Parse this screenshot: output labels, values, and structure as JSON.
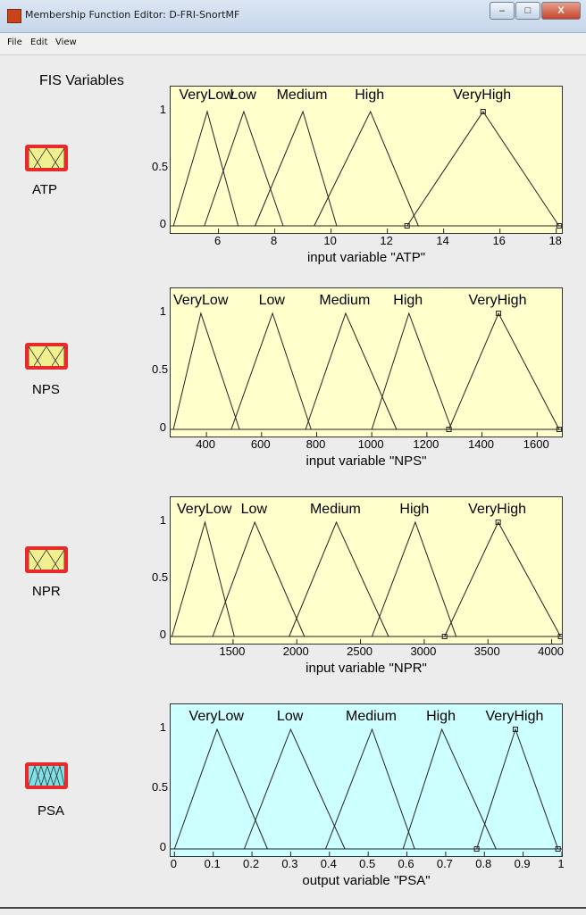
{
  "window": {
    "title": "Membership Function Editor: D-FRI-SnortMF",
    "minimize": "–",
    "maximize": "□",
    "close": "X"
  },
  "menu": [
    "File",
    "Edit",
    "View"
  ],
  "heading": "FIS Variables",
  "colors": {
    "input_bg": "#ffffcc",
    "output_bg": "#ccffff",
    "icon_frame": "#e82a2a",
    "input_icon_fill": "#f0f090",
    "output_icon_fill": "#7fe0e8"
  },
  "variables": [
    {
      "name": "ATP",
      "kind": "input",
      "xlabel": "input variable \"ATP\"",
      "ticks": [
        "6",
        "8",
        "10",
        "12",
        "14",
        "16",
        "18"
      ],
      "yticks": [
        "1",
        "0.5",
        "0"
      ],
      "mfs": [
        "VeryLow",
        "Low",
        "Medium",
        "High",
        "VeryHigh"
      ]
    },
    {
      "name": "NPS",
      "kind": "input",
      "xlabel": "input variable \"NPS\"",
      "ticks": [
        "400",
        "600",
        "800",
        "1000",
        "1200",
        "1400",
        "1600"
      ],
      "yticks": [
        "1",
        "0.5",
        "0"
      ],
      "mfs": [
        "VeryLow",
        "Low",
        "Medium",
        "High",
        "VeryHigh"
      ]
    },
    {
      "name": "NPR",
      "kind": "input",
      "xlabel": "input variable \"NPR\"",
      "ticks": [
        "1500",
        "2000",
        "2500",
        "3000",
        "3500",
        "4000"
      ],
      "yticks": [
        "1",
        "0.5",
        "0"
      ],
      "mfs": [
        "VeryLow",
        "Low",
        "Medium",
        "High",
        "VeryHigh"
      ]
    },
    {
      "name": "PSA",
      "kind": "output",
      "xlabel": "output variable \"PSA\"",
      "ticks": [
        "0",
        "0.1",
        "0.2",
        "0.3",
        "0.4",
        "0.5",
        "0.6",
        "0.7",
        "0.8",
        "0.9",
        "1"
      ],
      "yticks": [
        "1",
        "0.5",
        "0"
      ],
      "mfs": [
        "VeryLow",
        "Low",
        "Medium",
        "High",
        "VeryHigh"
      ]
    }
  ],
  "chart_data": [
    {
      "type": "line",
      "xlabel": "input variable \"ATP\"",
      "xlim": [
        4.3,
        18.2
      ],
      "ylim": [
        0,
        1
      ],
      "xticks": [
        6,
        8,
        10,
        12,
        14,
        16,
        18
      ],
      "yticks": [
        0,
        0.5,
        1
      ],
      "series": [
        {
          "name": "VeryLow",
          "x": [
            4.4,
            5.6,
            6.7
          ],
          "y": [
            0,
            1,
            0
          ]
        },
        {
          "name": "Low",
          "x": [
            5.5,
            6.9,
            8.3
          ],
          "y": [
            0,
            1,
            0
          ]
        },
        {
          "name": "Medium",
          "x": [
            7.3,
            9.0,
            10.2
          ],
          "y": [
            0,
            1,
            0
          ]
        },
        {
          "name": "High",
          "x": [
            9.4,
            11.4,
            13.1
          ],
          "y": [
            0,
            1,
            0
          ]
        },
        {
          "name": "VeryHigh",
          "x": [
            12.7,
            15.4,
            18.1
          ],
          "y": [
            0,
            1,
            0
          ]
        }
      ]
    },
    {
      "type": "line",
      "xlabel": "input variable \"NPS\"",
      "xlim": [
        270,
        1690
      ],
      "ylim": [
        0,
        1
      ],
      "xticks": [
        400,
        600,
        800,
        1000,
        1200,
        1400,
        1600
      ],
      "yticks": [
        0,
        0.5,
        1
      ],
      "series": [
        {
          "name": "VeryLow",
          "x": [
            280,
            380,
            520
          ],
          "y": [
            0,
            1,
            0
          ]
        },
        {
          "name": "Low",
          "x": [
            490,
            640,
            780
          ],
          "y": [
            0,
            1,
            0
          ]
        },
        {
          "name": "Medium",
          "x": [
            760,
            905,
            1090
          ],
          "y": [
            0,
            1,
            0
          ]
        },
        {
          "name": "High",
          "x": [
            1000,
            1135,
            1290
          ],
          "y": [
            0,
            1,
            0
          ]
        },
        {
          "name": "VeryHigh",
          "x": [
            1280,
            1460,
            1680
          ],
          "y": [
            0,
            1,
            0
          ]
        }
      ]
    },
    {
      "type": "line",
      "xlabel": "input variable \"NPR\"",
      "xlim": [
        1010,
        4080
      ],
      "ylim": [
        0,
        1
      ],
      "xticks": [
        1500,
        2000,
        2500,
        3000,
        3500,
        4000
      ],
      "yticks": [
        0,
        0.5,
        1
      ],
      "series": [
        {
          "name": "VeryLow",
          "x": [
            1020,
            1280,
            1510
          ],
          "y": [
            0,
            1,
            0
          ]
        },
        {
          "name": "Low",
          "x": [
            1340,
            1670,
            2060
          ],
          "y": [
            0,
            1,
            0
          ]
        },
        {
          "name": "Medium",
          "x": [
            1940,
            2310,
            2720
          ],
          "y": [
            0,
            1,
            0
          ]
        },
        {
          "name": "High",
          "x": [
            2590,
            2930,
            3250
          ],
          "y": [
            0,
            1,
            0
          ]
        },
        {
          "name": "VeryHigh",
          "x": [
            3160,
            3580,
            4070
          ],
          "y": [
            0,
            1,
            0
          ]
        }
      ]
    },
    {
      "type": "line",
      "xlabel": "output variable \"PSA\"",
      "xlim": [
        -0.01,
        1.0
      ],
      "ylim": [
        0,
        1
      ],
      "xticks": [
        0,
        0.1,
        0.2,
        0.3,
        0.4,
        0.5,
        0.6,
        0.7,
        0.8,
        0.9,
        1
      ],
      "yticks": [
        0,
        0.5,
        1
      ],
      "series": [
        {
          "name": "VeryLow",
          "x": [
            0.0,
            0.11,
            0.24
          ],
          "y": [
            0,
            1,
            0
          ]
        },
        {
          "name": "Low",
          "x": [
            0.18,
            0.3,
            0.44
          ],
          "y": [
            0,
            1,
            0
          ]
        },
        {
          "name": "Medium",
          "x": [
            0.39,
            0.51,
            0.62
          ],
          "y": [
            0,
            1,
            0
          ]
        },
        {
          "name": "High",
          "x": [
            0.59,
            0.69,
            0.83
          ],
          "y": [
            0,
            1,
            0
          ]
        },
        {
          "name": "VeryHigh",
          "x": [
            0.78,
            0.88,
            0.99
          ],
          "y": [
            0,
            1,
            0
          ]
        }
      ]
    }
  ]
}
